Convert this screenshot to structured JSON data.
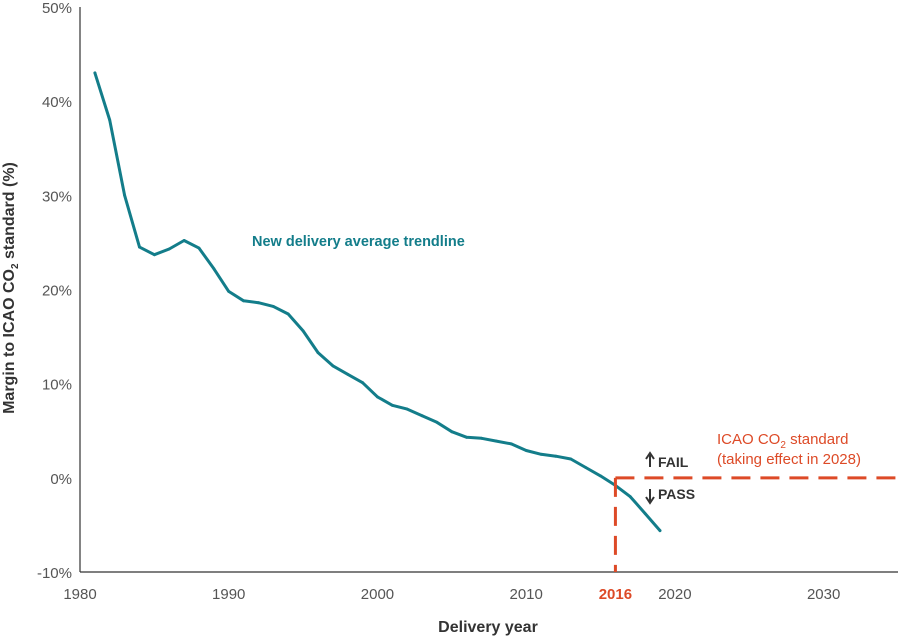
{
  "chart_data": {
    "type": "line",
    "xlabel": "Delivery year",
    "ylabel_main": "Margin to ICAO CO",
    "ylabel_sub": "2",
    "ylabel_tail": " standard (%)",
    "xlim": [
      1980,
      2035
    ],
    "ylim": [
      -10,
      50
    ],
    "x_ticks": [
      1980,
      1990,
      2000,
      2010,
      2020,
      2030
    ],
    "y_ticks": [
      {
        "value": -10,
        "label": "-10%"
      },
      {
        "value": 0,
        "label": "0%"
      },
      {
        "value": 10,
        "label": "10%"
      },
      {
        "value": 20,
        "label": "20%"
      },
      {
        "value": 30,
        "label": "30%"
      },
      {
        "value": 40,
        "label": "40%"
      },
      {
        "value": 50,
        "label": "50%"
      }
    ],
    "series": [
      {
        "name": "New delivery average trendline",
        "color": "#137d8a",
        "x": [
          1981,
          1982,
          1983,
          1984,
          1985,
          1986,
          1987,
          1988,
          1989,
          1990,
          1991,
          1992,
          1993,
          1994,
          1995,
          1996,
          1997,
          1998,
          1999,
          2000,
          2001,
          2002,
          2003,
          2004,
          2005,
          2006,
          2007,
          2008,
          2009,
          2010,
          2011,
          2012,
          2013,
          2014,
          2015,
          2016,
          2017,
          2018,
          2019
        ],
        "y": [
          43.0,
          38.0,
          30.0,
          24.5,
          23.7,
          24.3,
          25.2,
          24.4,
          22.2,
          19.8,
          18.8,
          18.6,
          18.2,
          17.4,
          15.6,
          13.3,
          11.9,
          11.0,
          10.1,
          8.6,
          7.7,
          7.3,
          6.6,
          5.9,
          4.9,
          4.3,
          4.2,
          3.9,
          3.6,
          2.9,
          2.5,
          2.3,
          2.0,
          1.1,
          0.2,
          -0.8,
          -2.0,
          -3.8,
          -5.6
        ]
      }
    ],
    "standard": {
      "label_line1_main": "ICAO CO",
      "label_line1_sub": "2",
      "label_line1_tail": " standard",
      "label_line2": "(taking effect in 2028)",
      "color": "#dd4a27",
      "y": 0,
      "x_start": 2016
    },
    "marker": {
      "x": 2016,
      "label": "2016"
    },
    "annotations": {
      "fail": "FAIL",
      "pass": "PASS"
    },
    "grid": false
  }
}
